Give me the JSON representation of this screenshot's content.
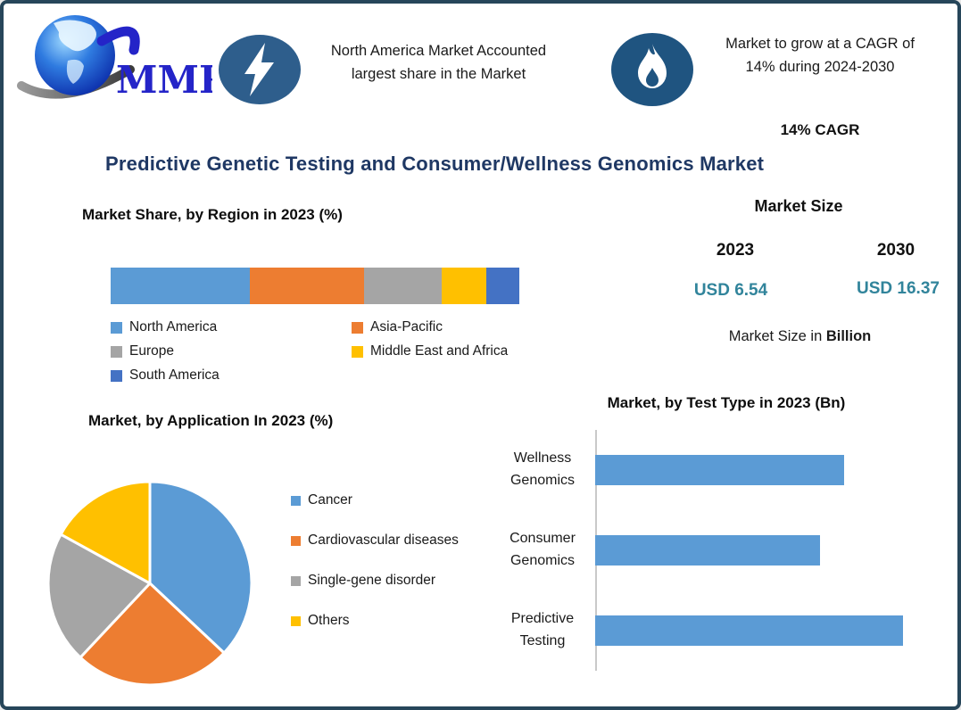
{
  "logo": {
    "text": "MMR"
  },
  "header": {
    "badge1_text": "North America Market Accounted largest share in the Market",
    "badge2_text": "Market to grow at a CAGR of 14% during 2024-2030",
    "cagr_label": "14% CAGR"
  },
  "title": "Predictive Genetic Testing and Consumer/Wellness Genomics Market",
  "market_size": {
    "heading": "Market Size",
    "year_start": "2023",
    "year_end": "2030",
    "value_start": "USD 6.54",
    "value_end": "USD 16.37",
    "note_prefix": "Market Size in ",
    "note_bold": "Billion"
  },
  "colors": {
    "border": "#27465A",
    "title_navy": "#1F3864",
    "value_teal": "#31849B",
    "badge_blue_bolt": "#2E5E8C",
    "badge_blue_flame": "#1F5480",
    "logo_blue": "#2424C8"
  },
  "chart_data": [
    {
      "type": "bar",
      "variant": "stacked-horizontal",
      "title": "Market Share, by Region in 2023 (%)",
      "categories": [
        "North America",
        "Asia-Pacific",
        "Europe",
        "Middle East and Africa",
        "South America"
      ],
      "values": [
        34,
        28,
        19,
        11,
        8
      ],
      "colors": [
        "#5B9BD5",
        "#ED7D31",
        "#A5A5A5",
        "#FFC000",
        "#4472C4"
      ],
      "unit": "%",
      "legend_position": "bottom",
      "grid": false
    },
    {
      "type": "pie",
      "title": "Market, by Application In 2023 (%)",
      "categories": [
        "Cancer",
        "Cardiovascular diseases",
        "Single-gene disorder",
        "Others"
      ],
      "values": [
        37,
        25,
        21,
        17
      ],
      "colors": [
        "#5B9BD5",
        "#ED7D31",
        "#A5A5A5",
        "#FFC000"
      ],
      "unit": "%",
      "start_angle_deg": 0,
      "direction": "clockwise",
      "legend_position": "right",
      "grid": false
    },
    {
      "type": "bar",
      "variant": "horizontal",
      "title": "Market, by Test Type in 2023 (Bn)",
      "categories": [
        "Wellness Genomics",
        "Consumer Genomics",
        "Predictive Testing"
      ],
      "values": [
        2.1,
        1.9,
        2.6
      ],
      "bar_color": "#5B9BD5",
      "unit": "Bn",
      "xlim": [
        0,
        2.6
      ],
      "grid": false,
      "legend_position": "none"
    }
  ]
}
